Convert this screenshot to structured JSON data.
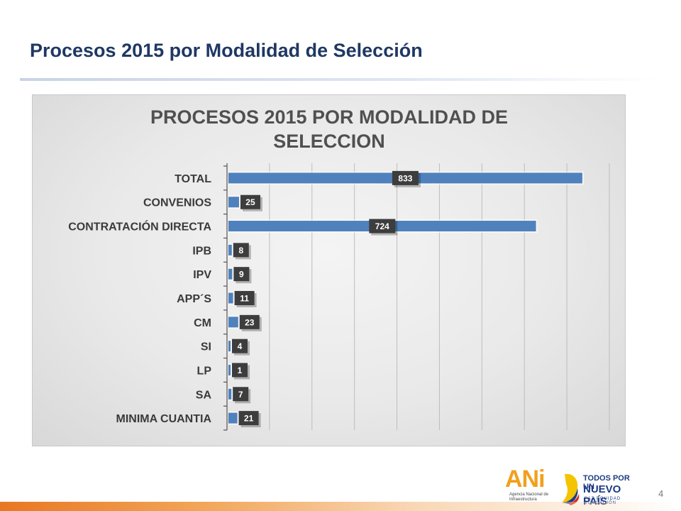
{
  "slide": {
    "title": "Procesos 2015 por Modalidad de Selección",
    "page_number": "4"
  },
  "logos": {
    "ani_word": "ANi",
    "ani_subtitle": "Agencia Nacional de Infraestructura",
    "nuevo_pais_line1": "TODOS POR UN",
    "nuevo_pais_line2": "NUEVO PAÍS",
    "nuevo_pais_line3": "PAZ EQUIDAD EDUCACIÓN"
  },
  "colors": {
    "bar": "#4f81bd",
    "label_box": "#3d3d3d",
    "title_text": "#1f3864",
    "footer_accent": "#e87722"
  },
  "chart_data": {
    "type": "bar",
    "orientation": "horizontal",
    "title_lines": [
      "PROCESOS 2015 POR MODALIDAD DE",
      "SELECCION"
    ],
    "categories": [
      "TOTAL",
      "CONVENIOS",
      "CONTRATACIÓN DIRECTA",
      "IPB",
      "IPV",
      "APP´S",
      "CM",
      "SI",
      "LP",
      "SA",
      "MINIMA CUANTIA"
    ],
    "values": [
      833,
      25,
      724,
      8,
      9,
      11,
      23,
      4,
      1,
      7,
      21
    ],
    "data_labels": [
      "833",
      "25",
      "724",
      "8",
      "9",
      "11",
      "23",
      "4",
      "1",
      "7",
      "21"
    ],
    "xlim": [
      0,
      900
    ],
    "x_gridlines": true,
    "x_axis_labels_shown": false,
    "legend": "none"
  }
}
